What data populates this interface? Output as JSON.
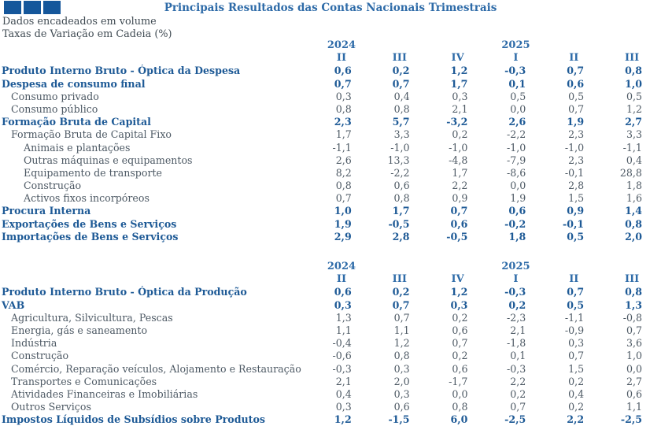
{
  "header": {
    "title": "Principais Resultados das Contas Nacionais Trimestrais",
    "subtitle1": "Dados encadeados em volume",
    "subtitle2": "Taxas de Variação em Cadeia (%)"
  },
  "logo": {
    "squares": 3,
    "color": "#15579B"
  },
  "colors": {
    "title": "#2E6BA8",
    "bold_row": "#1E5A96",
    "regular_row": "#4D5964",
    "subtitle": "#3F4A52",
    "logo_blue": "#15579B",
    "background": "#FFFFFF"
  },
  "column_headers": {
    "years": [
      "2024",
      "2025"
    ],
    "year_positions": [
      0,
      3
    ],
    "quarters": [
      "II",
      "III",
      "IV",
      "I",
      "II",
      "III"
    ]
  },
  "tables": [
    {
      "name": "optica-da-despesa",
      "rows": [
        {
          "label": "Produto Interno Bruto - Óptica da Despesa",
          "style": "bold",
          "values": [
            "0,6",
            "0,2",
            "1,2",
            "-0,3",
            "0,7",
            "0,8"
          ]
        },
        {
          "label": "Despesa de consumo final",
          "style": "bold",
          "values": [
            "0,7",
            "0,7",
            "1,7",
            "0,1",
            "0,6",
            "1,0"
          ]
        },
        {
          "label": "Consumo privado",
          "style": "l1",
          "values": [
            "0,3",
            "0,4",
            "0,3",
            "0,5",
            "0,5",
            "0,5"
          ]
        },
        {
          "label": "Consumo público",
          "style": "l1",
          "values": [
            "0,8",
            "0,8",
            "2,1",
            "0,0",
            "0,7",
            "1,2"
          ]
        },
        {
          "label": "Formação Bruta de Capital",
          "style": "bold",
          "values": [
            "2,3",
            "5,7",
            "-3,2",
            "2,6",
            "1,9",
            "2,7"
          ]
        },
        {
          "label": "Formação Bruta de Capital Fixo",
          "style": "l1",
          "values": [
            "1,7",
            "3,3",
            "0,2",
            "-2,2",
            "2,3",
            "3,3"
          ]
        },
        {
          "label": "Animais e plantações",
          "style": "l2",
          "values": [
            "-1,1",
            "-1,0",
            "-1,0",
            "-1,0",
            "-1,0",
            "-1,1"
          ]
        },
        {
          "label": "Outras máquinas e equipamentos",
          "style": "l2",
          "values": [
            "2,6",
            "13,3",
            "-4,8",
            "-7,9",
            "2,3",
            "0,4"
          ]
        },
        {
          "label": "Equipamento de transporte",
          "style": "l2",
          "values": [
            "8,2",
            "-2,2",
            "1,7",
            "-8,6",
            "-0,1",
            "28,8"
          ]
        },
        {
          "label": "Construção",
          "style": "l2",
          "values": [
            "0,8",
            "0,6",
            "2,2",
            "0,0",
            "2,8",
            "1,8"
          ]
        },
        {
          "label": "Activos fixos incorpóreos",
          "style": "l2",
          "values": [
            "0,7",
            "0,8",
            "0,9",
            "1,9",
            "1,5",
            "1,6"
          ]
        },
        {
          "label": "Procura Interna",
          "style": "bold",
          "values": [
            "1,0",
            "1,7",
            "0,7",
            "0,6",
            "0,9",
            "1,4"
          ]
        },
        {
          "label": "Exportações de Bens e Serviços",
          "style": "bold",
          "values": [
            "1,9",
            "-0,5",
            "0,6",
            "-0,2",
            "-0,1",
            "0,8"
          ]
        },
        {
          "label": "Importações de Bens e Serviços",
          "style": "bold",
          "values": [
            "2,9",
            "2,8",
            "-0,5",
            "1,8",
            "0,5",
            "2,0"
          ]
        }
      ]
    },
    {
      "name": "optica-da-producao",
      "rows": [
        {
          "label": "Produto Interno Bruto - Óptica da Produção",
          "style": "bold",
          "values": [
            "0,6",
            "0,2",
            "1,2",
            "-0,3",
            "0,7",
            "0,8"
          ]
        },
        {
          "label": "VAB",
          "style": "bold",
          "values": [
            "0,3",
            "0,7",
            "0,3",
            "0,2",
            "0,5",
            "1,3"
          ]
        },
        {
          "label": "Agricultura, Silvicultura, Pescas",
          "style": "l1",
          "values": [
            "1,3",
            "0,7",
            "0,2",
            "-2,3",
            "-1,1",
            "-0,8"
          ]
        },
        {
          "label": "Energia, gás e saneamento",
          "style": "l1",
          "values": [
            "1,1",
            "1,1",
            "0,6",
            "2,1",
            "-0,9",
            "0,7"
          ]
        },
        {
          "label": "Indústria",
          "style": "l1",
          "values": [
            "-0,4",
            "1,2",
            "0,7",
            "-1,8",
            "0,3",
            "3,6"
          ]
        },
        {
          "label": "Construção",
          "style": "l1",
          "values": [
            "-0,6",
            "0,8",
            "0,2",
            "0,1",
            "0,7",
            "1,0"
          ]
        },
        {
          "label": "Comércio, Reparação veículos, Alojamento e Restauração",
          "style": "l1",
          "values": [
            "-0,3",
            "0,3",
            "0,6",
            "-0,3",
            "1,5",
            "0,0"
          ]
        },
        {
          "label": "Transportes e Comunicações",
          "style": "l1",
          "values": [
            "2,1",
            "2,0",
            "-1,7",
            "2,2",
            "0,2",
            "2,7"
          ]
        },
        {
          "label": "Atividades Financeiras e Imobiliárias",
          "style": "l1",
          "values": [
            "0,4",
            "0,3",
            "0,0",
            "0,2",
            "0,4",
            "0,6"
          ]
        },
        {
          "label": "Outros Serviços",
          "style": "l1",
          "values": [
            "0,3",
            "0,6",
            "0,8",
            "0,7",
            "0,2",
            "1,1"
          ]
        },
        {
          "label": "Impostos Líquidos de Subsídios sobre Produtos",
          "style": "bold",
          "values": [
            "1,2",
            "-1,5",
            "6,0",
            "-2,5",
            "2,2",
            "-2,5"
          ]
        }
      ]
    }
  ]
}
